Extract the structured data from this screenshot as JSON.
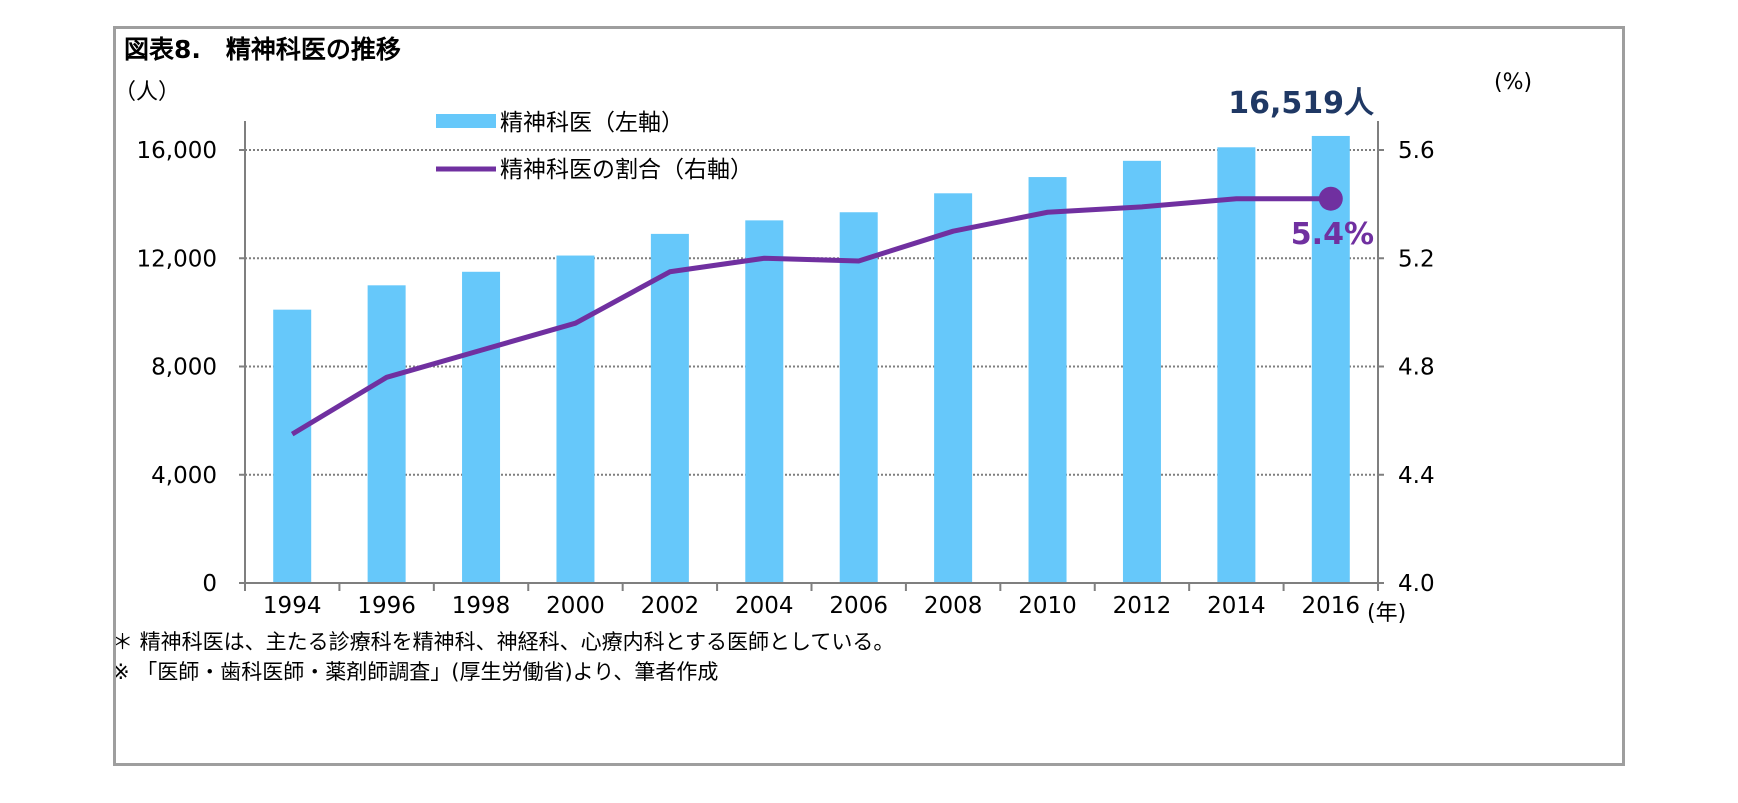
{
  "title": "図表8.　精神科医の推移",
  "left_unit": "（人）",
  "right_unit": "(%)",
  "x_unit": "(年)",
  "notes": [
    "＊ 精神科医は、主たる診療科を精神科、神経科、心療内科とする医師としている。",
    "※ 「医師・歯科医師・薬剤師調査」(厚生労働省)より、筆者作成"
  ],
  "colors": {
    "bar": "#66c8fa",
    "line": "#7030a0",
    "count_label": "#1f3864",
    "pct_label": "#7030a0"
  },
  "chart_data": {
    "type": "bar",
    "categories": [
      "1994",
      "1996",
      "1998",
      "2000",
      "2002",
      "2004",
      "2006",
      "2008",
      "2010",
      "2012",
      "2014",
      "2016"
    ],
    "series": [
      {
        "name": "精神科医（左軸）",
        "type": "bar",
        "axis": "left",
        "values": [
          10100,
          11000,
          11500,
          12100,
          12900,
          13400,
          13700,
          14400,
          15000,
          15600,
          16100,
          16519
        ]
      },
      {
        "name": "精神科医の割合（右軸）",
        "type": "line",
        "axis": "right",
        "values": [
          4.55,
          4.76,
          4.86,
          4.96,
          5.15,
          5.2,
          5.19,
          5.3,
          5.37,
          5.39,
          5.42,
          5.42
        ]
      }
    ],
    "y_left": {
      "min": 0,
      "max": 16000,
      "ticks": [
        "0",
        "4,000",
        "8,000",
        "12,000",
        "16,000"
      ]
    },
    "y_right": {
      "min": 4.0,
      "max": 5.6,
      "ticks": [
        "4.0",
        "4.4",
        "4.8",
        "5.2",
        "5.6"
      ]
    },
    "ylim_left": [
      0,
      17000
    ],
    "grid": true,
    "legend_placement": "top-left",
    "annotations": {
      "last_count": "16,519人",
      "last_pct": "5.4%"
    }
  }
}
